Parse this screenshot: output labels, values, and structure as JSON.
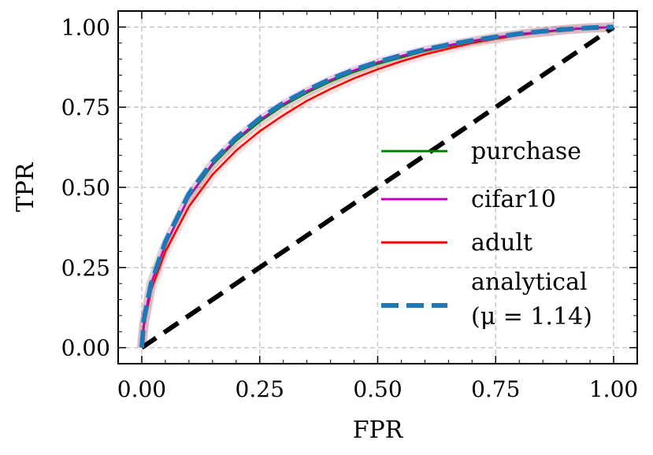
{
  "chart_data": {
    "type": "line",
    "xlabel": "FPR",
    "ylabel": "TPR",
    "xlim": [
      -0.05,
      1.05
    ],
    "ylim": [
      -0.05,
      1.05
    ],
    "xticks": [
      "0.00",
      "0.25",
      "0.50",
      "0.75",
      "1.00"
    ],
    "yticks": [
      "0.00",
      "0.25",
      "0.50",
      "0.75",
      "1.00"
    ],
    "grid": true,
    "legend_position": "right",
    "series": [
      {
        "name": "purchase",
        "color": "#008000",
        "style": "solid",
        "x": [
          0,
          0.005,
          0.02,
          0.05,
          0.1,
          0.15,
          0.2,
          0.25,
          0.3,
          0.35,
          0.4,
          0.45,
          0.5,
          0.55,
          0.6,
          0.65,
          0.7,
          0.75,
          0.8,
          0.85,
          0.9,
          0.95,
          1.0
        ],
        "y": [
          0,
          0.08,
          0.2,
          0.32,
          0.47,
          0.57,
          0.645,
          0.705,
          0.755,
          0.795,
          0.83,
          0.86,
          0.885,
          0.905,
          0.925,
          0.94,
          0.955,
          0.967,
          0.977,
          0.985,
          0.992,
          0.997,
          1.0
        ]
      },
      {
        "name": "cifar10",
        "color": "#bf00bf",
        "style": "solid",
        "x": [
          0,
          0.005,
          0.02,
          0.05,
          0.1,
          0.15,
          0.2,
          0.25,
          0.3,
          0.35,
          0.4,
          0.45,
          0.5,
          0.55,
          0.6,
          0.65,
          0.7,
          0.75,
          0.8,
          0.85,
          0.9,
          0.95,
          1.0
        ],
        "y": [
          0,
          0.08,
          0.2,
          0.32,
          0.47,
          0.575,
          0.65,
          0.71,
          0.76,
          0.8,
          0.835,
          0.865,
          0.89,
          0.91,
          0.928,
          0.943,
          0.957,
          0.968,
          0.978,
          0.986,
          0.993,
          0.998,
          1.0
        ]
      },
      {
        "name": "adult",
        "color": "#ff0000",
        "style": "solid",
        "x": [
          0,
          0.005,
          0.02,
          0.05,
          0.1,
          0.15,
          0.2,
          0.25,
          0.3,
          0.35,
          0.4,
          0.45,
          0.5,
          0.55,
          0.6,
          0.65,
          0.7,
          0.75,
          0.8,
          0.85,
          0.9,
          0.95,
          1.0
        ],
        "y": [
          0,
          0.07,
          0.18,
          0.3,
          0.44,
          0.54,
          0.615,
          0.675,
          0.725,
          0.77,
          0.807,
          0.84,
          0.868,
          0.893,
          0.915,
          0.933,
          0.95,
          0.963,
          0.975,
          0.984,
          0.992,
          0.997,
          1.0
        ]
      },
      {
        "name": "analytical",
        "name_line2": "(μ = 1.14)",
        "color": "#1f77b4",
        "style": "dashed",
        "x": [
          0,
          0.005,
          0.02,
          0.05,
          0.1,
          0.15,
          0.2,
          0.25,
          0.3,
          0.35,
          0.4,
          0.45,
          0.5,
          0.55,
          0.6,
          0.65,
          0.7,
          0.75,
          0.8,
          0.85,
          0.9,
          0.95,
          1.0
        ],
        "y": [
          0,
          0.09,
          0.2,
          0.33,
          0.48,
          0.58,
          0.655,
          0.715,
          0.763,
          0.803,
          0.838,
          0.867,
          0.891,
          0.912,
          0.93,
          0.945,
          0.958,
          0.969,
          0.979,
          0.987,
          0.993,
          0.998,
          1.0
        ]
      },
      {
        "name": "",
        "color": "#000000",
        "style": "dashed",
        "x": [
          0,
          1
        ],
        "y": [
          0,
          1
        ]
      }
    ]
  }
}
